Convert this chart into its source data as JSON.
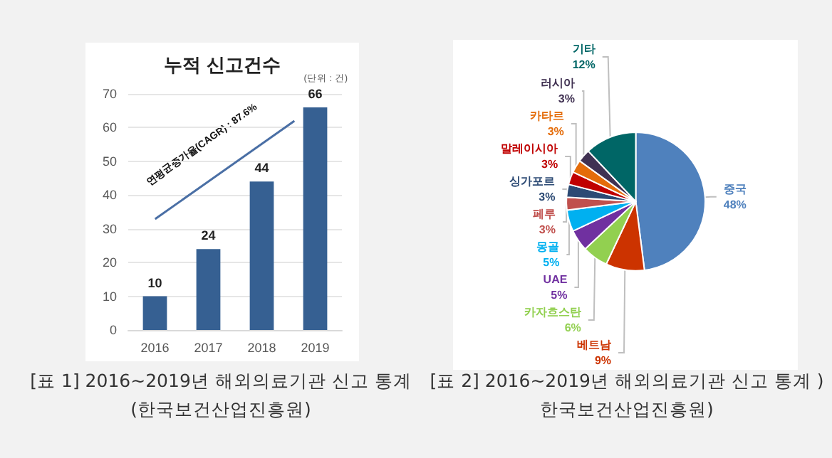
{
  "chart_data": [
    {
      "type": "bar",
      "title": "누적 신고건수",
      "categories": [
        "2016",
        "2017",
        "2018",
        "2019"
      ],
      "values": [
        10,
        24,
        44,
        66
      ],
      "color": "#366092",
      "ylim": [
        0,
        70
      ],
      "yticks": [
        0,
        10,
        20,
        30,
        40,
        50,
        60,
        70
      ],
      "grid": "y",
      "data_labels": true,
      "legend": false,
      "annotations": [
        "(단위 : 건)",
        "연평균증가율(CAGR) : 87.6%",
        "[표 1] 2016~2019년 해외의료기관 신고 통계 (한국보건산업진흥원)"
      ]
    },
    {
      "type": "pie",
      "categories": [
        "중국",
        "베트남",
        "카자흐스탄",
        "UAE",
        "몽골",
        "페루",
        "싱가포르",
        "말레이시아",
        "카타르",
        "러시아",
        "기타"
      ],
      "values": [
        48,
        9,
        6,
        5,
        5,
        3,
        3,
        3,
        3,
        3,
        12
      ],
      "value_labels": [
        "48%",
        "9%",
        "6%",
        "5%",
        "5%",
        "3%",
        "3%",
        "3%",
        "3%",
        "3%",
        "12%"
      ],
      "colors": [
        "#4f81bd",
        "#cc3300",
        "#92d050",
        "#7030a0",
        "#00b0f0",
        "#c0504d",
        "#2c4a74",
        "#c00000",
        "#e46c0a",
        "#403152",
        "#006666"
      ],
      "legend": false,
      "annotations": [
        "[표 2] 2016~2019년 해외의료기관 신고 통계 )한국보건산업진흥원)"
      ]
    }
  ]
}
